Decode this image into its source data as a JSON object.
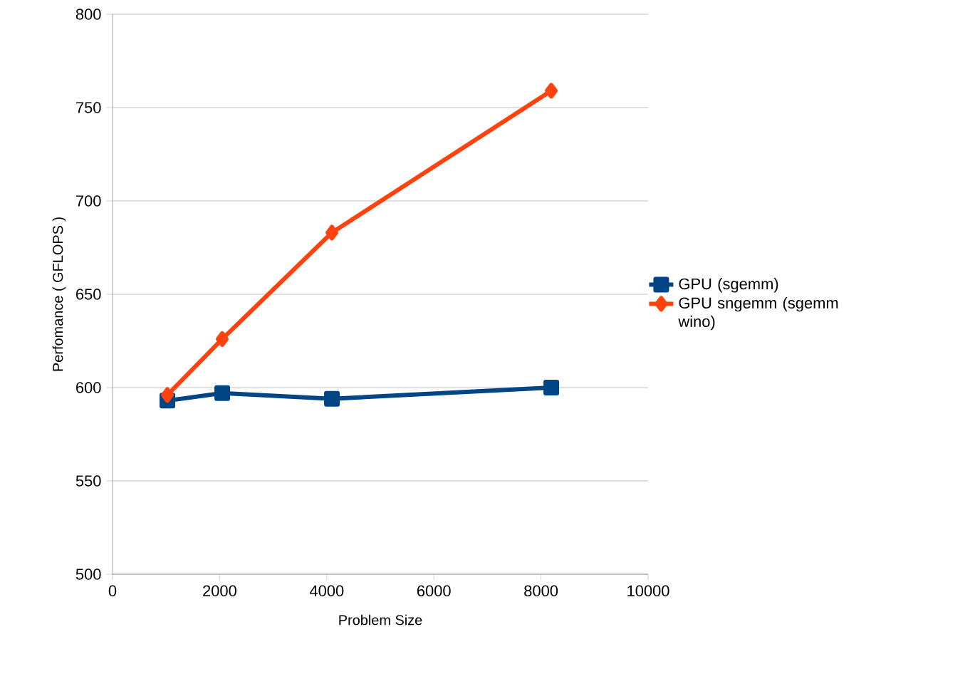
{
  "chart_data": {
    "type": "line",
    "xlabel": "Problem Size",
    "ylabel": "Perfomance ( GFLOPS )",
    "xlim": [
      0,
      10000
    ],
    "xticks": [
      0,
      2000,
      4000,
      6000,
      8000,
      10000
    ],
    "ylim": [
      500,
      800
    ],
    "yticks": [
      500,
      550,
      600,
      650,
      700,
      750,
      800
    ],
    "grid": "y",
    "legend": "right",
    "series": [
      {
        "name": "GPU (sgemm)",
        "color": "#004586",
        "marker": "square",
        "x": [
          1024,
          2048,
          4096,
          8192
        ],
        "values": [
          593,
          597,
          594,
          600
        ]
      },
      {
        "name": "GPU sngemm (sgemm wino)",
        "color": "#ff420e",
        "marker": "diamond",
        "x": [
          1024,
          2048,
          4096,
          8192
        ],
        "values": [
          596,
          626,
          683,
          759
        ]
      }
    ]
  }
}
